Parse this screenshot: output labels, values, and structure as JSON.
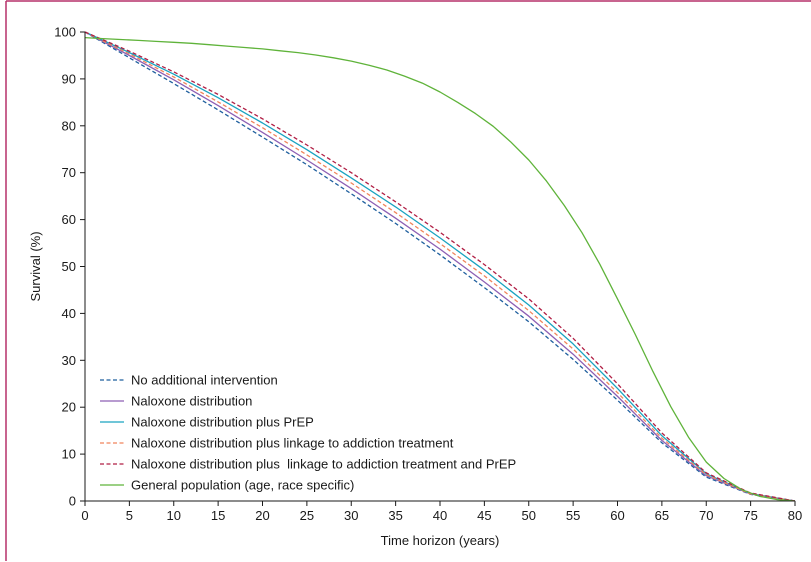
{
  "chart_data": {
    "type": "line",
    "title": "",
    "xlabel": "Time horizon (years)",
    "ylabel": "Survival (%)",
    "xlim": [
      0,
      80
    ],
    "ylim": [
      0,
      100
    ],
    "xticks": [
      0,
      5,
      10,
      15,
      20,
      25,
      30,
      35,
      40,
      45,
      50,
      55,
      60,
      65,
      70,
      75,
      80
    ],
    "yticks": [
      0,
      10,
      20,
      30,
      40,
      50,
      60,
      70,
      80,
      90,
      100
    ],
    "grid": false,
    "legend_position": "bottom-left",
    "colors": {
      "frame": "#b5306a",
      "axis": "#1a1a1a"
    },
    "series": [
      {
        "name": "No additional intervention",
        "color": "#1f5f9e",
        "dash": "dashed",
        "x": [
          0,
          5,
          10,
          15,
          20,
          25,
          30,
          35,
          40,
          45,
          50,
          55,
          60,
          65,
          70,
          75,
          80
        ],
        "y": [
          100,
          94.5,
          89,
          83.4,
          77.6,
          71.7,
          65.5,
          59.2,
          52.5,
          45.5,
          38.2,
          30.2,
          21.5,
          12.4,
          5.1,
          1.4,
          0
        ]
      },
      {
        "name": "Naloxone distribution",
        "color": "#8d5fb4",
        "dash": "solid",
        "x": [
          0,
          5,
          10,
          15,
          20,
          25,
          30,
          35,
          40,
          45,
          50,
          55,
          60,
          65,
          70,
          75,
          80
        ],
        "y": [
          100,
          95,
          89.8,
          84.3,
          78.6,
          72.7,
          66.6,
          60.3,
          53.7,
          46.7,
          39.4,
          31.3,
          22.3,
          12.9,
          5.4,
          1.5,
          0
        ]
      },
      {
        "name": "Naloxone distribution plus PrEP",
        "color": "#1aa3c0",
        "dash": "solid",
        "x": [
          0,
          5,
          10,
          15,
          20,
          25,
          30,
          35,
          40,
          45,
          50,
          55,
          60,
          65,
          70,
          75,
          80
        ],
        "y": [
          100,
          95.6,
          91,
          86,
          80.6,
          74.9,
          68.9,
          62.7,
          56.1,
          49.2,
          41.8,
          33.5,
          24,
          13.9,
          5.8,
          1.6,
          0
        ]
      },
      {
        "name": "Naloxone distribution plus linkage to addiction treatment",
        "color": "#f0855c",
        "dash": "dashed",
        "x": [
          0,
          5,
          10,
          15,
          20,
          25,
          30,
          35,
          40,
          45,
          50,
          55,
          60,
          65,
          70,
          75,
          80
        ],
        "y": [
          100,
          95.3,
          90.4,
          85.1,
          79.6,
          73.8,
          67.8,
          61.5,
          54.9,
          48,
          40.6,
          32.4,
          23.1,
          13.4,
          5.6,
          1.5,
          0
        ]
      },
      {
        "name": "Naloxone distribution plus  linkage to addiction treatment and PrEP",
        "color": "#b01e44",
        "dash": "dashed",
        "x": [
          0,
          5,
          10,
          15,
          20,
          25,
          30,
          35,
          40,
          45,
          50,
          55,
          60,
          65,
          70,
          75,
          80
        ],
        "y": [
          100,
          95.9,
          91.5,
          86.7,
          81.5,
          75.9,
          70,
          63.8,
          57.3,
          50.4,
          43.1,
          34.7,
          25,
          14.5,
          6,
          1.7,
          0
        ]
      },
      {
        "name": "General population (age, race specific)",
        "color": "#5fb33a",
        "dash": "solid",
        "x": [
          0,
          2,
          4,
          6,
          8,
          10,
          12,
          14,
          16,
          18,
          20,
          22,
          24,
          26,
          28,
          30,
          32,
          34,
          36,
          38,
          40,
          42,
          44,
          46,
          48,
          50,
          52,
          54,
          56,
          58,
          60,
          62,
          64,
          66,
          68,
          70,
          72,
          74,
          76,
          78,
          80
        ],
        "y": [
          98.8,
          98.6,
          98.4,
          98.2,
          98,
          97.8,
          97.6,
          97.3,
          97,
          96.7,
          96.4,
          96,
          95.6,
          95.1,
          94.5,
          93.8,
          92.9,
          91.9,
          90.6,
          89.1,
          87.2,
          85,
          82.6,
          79.9,
          76.5,
          72.7,
          68.2,
          63,
          57.2,
          50.5,
          43.1,
          35.5,
          27.6,
          20.1,
          13.6,
          8.3,
          4.8,
          2.4,
          1,
          0.3,
          0
        ]
      }
    ]
  }
}
